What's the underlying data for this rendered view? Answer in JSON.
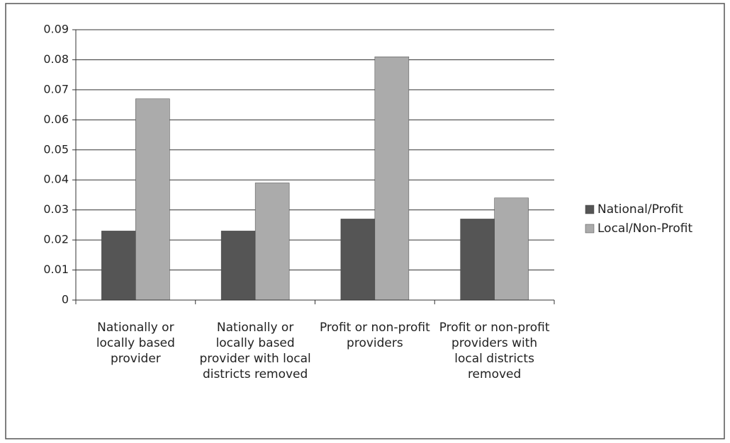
{
  "chart_data": {
    "type": "bar",
    "categories": [
      "Nationally or locally based provider",
      "Nationally or locally based provider with local districts removed",
      "Profit or non-profit providers",
      "Profit or non-profit providers with local districts removed"
    ],
    "series": [
      {
        "name": "National/Profit",
        "color": "#555555",
        "values": [
          0.023,
          0.023,
          0.027,
          0.027
        ]
      },
      {
        "name": "Local/Non-Profit",
        "color": "#ababab",
        "values": [
          0.067,
          0.039,
          0.081,
          0.034
        ]
      }
    ],
    "ylim": [
      0,
      0.09
    ],
    "yticks": [
      0,
      0.01,
      0.02,
      0.03,
      0.04,
      0.05,
      0.06,
      0.07,
      0.08,
      0.09
    ],
    "grid": true,
    "legend": "right"
  }
}
